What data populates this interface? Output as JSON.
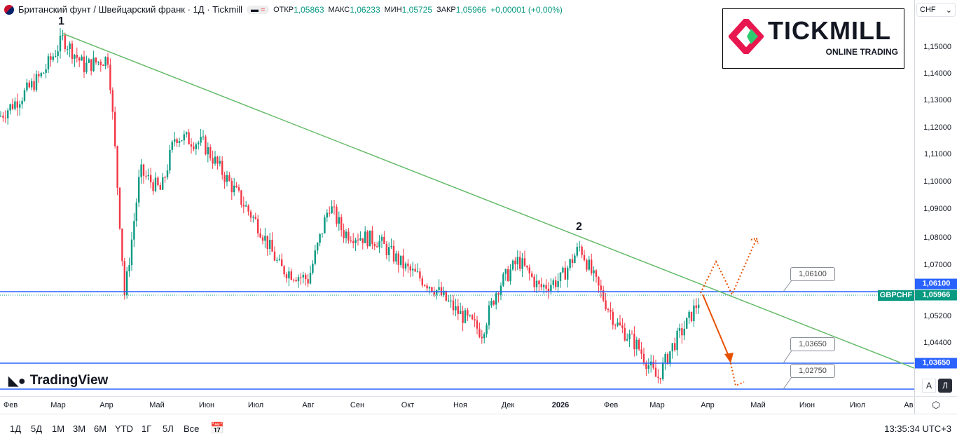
{
  "header": {
    "title": "Британский фунт / Швейцарский франк · 1Д · Tickmill",
    "ohlc": [
      {
        "k": "ОТКР",
        "v": "1,05863"
      },
      {
        "k": "МАКС",
        "v": "1,06233"
      },
      {
        "k": "МИН",
        "v": "1,05725"
      },
      {
        "k": "ЗАКР",
        "v": "1,05966"
      }
    ],
    "change": "+0,00001 (+0,00%)"
  },
  "currency_select": "CHF",
  "logo": {
    "brand": "TICKMILL",
    "tagline": "ONLINE TRADING"
  },
  "tv_logo": "TradingView",
  "price_axis": [
    "1,15000",
    "1,14000",
    "1,13000",
    "1,12000",
    "1,11000",
    "1,10000",
    "1,09000",
    "1,08000",
    "1,07000",
    "1,05200",
    "1,04400"
  ],
  "badges": {
    "level1": "1,06100",
    "current": "1,05966",
    "symbol": "GBPCHF",
    "level2": "1,03650"
  },
  "callouts": [
    "1,06100",
    "1,03650",
    "1,02750"
  ],
  "wave_labels": [
    "1",
    "2"
  ],
  "x_axis": [
    "Фев",
    "Мар",
    "Апр",
    "Май",
    "Июн",
    "Июл",
    "Авг",
    "Сен",
    "Окт",
    "Ноя",
    "Дек",
    "2026",
    "Фев",
    "Мар",
    "Апр",
    "Май",
    "Июн",
    "Июл",
    "Ав"
  ],
  "scale_buttons": {
    "auto": "A",
    "log": "Л"
  },
  "ranges": [
    "1Д",
    "5Д",
    "1М",
    "3М",
    "6М",
    "YTD",
    "1Г",
    "5Л",
    "Все"
  ],
  "clock": "13:35:34 UTC+3",
  "colors": {
    "up": "#089981",
    "down": "#f23645",
    "trend": "#66bb6a",
    "level": "#2962ff",
    "arrow": "#e65100"
  },
  "chart_data": {
    "type": "candlestick",
    "symbol": "GBPCHF",
    "timeframe": "1D",
    "path": [
      [
        0,
        1.125
      ],
      [
        30,
        1.132
      ],
      [
        60,
        1.14
      ],
      [
        90,
        1.153
      ],
      [
        120,
        1.143
      ],
      [
        155,
        1.146
      ],
      [
        165,
        1.11
      ],
      [
        178,
        1.06
      ],
      [
        200,
        1.105
      ],
      [
        230,
        1.098
      ],
      [
        250,
        1.118
      ],
      [
        290,
        1.115
      ],
      [
        330,
        1.1
      ],
      [
        370,
        1.085
      ],
      [
        400,
        1.07
      ],
      [
        440,
        1.066
      ],
      [
        470,
        1.093
      ],
      [
        490,
        1.083
      ],
      [
        540,
        1.08
      ],
      [
        580,
        1.07
      ],
      [
        620,
        1.063
      ],
      [
        650,
        1.055
      ],
      [
        688,
        1.047
      ],
      [
        710,
        1.063
      ],
      [
        740,
        1.073
      ],
      [
        770,
        1.063
      ],
      [
        800,
        1.066
      ],
      [
        828,
        1.078
      ],
      [
        850,
        1.065
      ],
      [
        880,
        1.05
      ],
      [
        910,
        1.042
      ],
      [
        938,
        1.03
      ],
      [
        960,
        1.042
      ],
      [
        980,
        1.05
      ],
      [
        1000,
        1.0597
      ]
    ],
    "levels": [
      1.061,
      1.0365,
      1.0275
    ],
    "ylim": [
      1.0275,
      1.155
    ]
  }
}
